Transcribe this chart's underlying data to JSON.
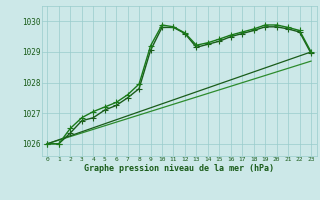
{
  "xlabel": "Graphe pression niveau de la mer (hPa)",
  "bg_color": "#cce8e8",
  "grid_color": "#99cccc",
  "dark_green": "#1a5c1a",
  "mid_green": "#2d8b2d",
  "light_green": "#3aaa3a",
  "ylim": [
    1025.6,
    1030.5
  ],
  "yticks": [
    1026,
    1027,
    1028,
    1029,
    1030
  ],
  "xlim": [
    -0.5,
    23.5
  ],
  "xticks": [
    0,
    1,
    2,
    3,
    4,
    5,
    6,
    7,
    8,
    9,
    10,
    11,
    12,
    13,
    14,
    15,
    16,
    17,
    18,
    19,
    20,
    21,
    22,
    23
  ],
  "series_main": {
    "x": [
      0,
      1,
      2,
      3,
      4,
      5,
      6,
      7,
      8,
      9,
      10,
      11,
      12,
      13,
      14,
      15,
      16,
      17,
      18,
      19,
      20,
      21,
      22,
      23
    ],
    "y": [
      1026.0,
      1026.0,
      1026.35,
      1026.75,
      1026.85,
      1027.1,
      1027.25,
      1027.5,
      1027.8,
      1029.05,
      1029.8,
      1029.8,
      1029.6,
      1029.15,
      1029.25,
      1029.35,
      1029.5,
      1029.6,
      1029.7,
      1029.82,
      1029.82,
      1029.75,
      1029.65,
      1028.95
    ],
    "color": "#1a5c1a",
    "linewidth": 1.0,
    "markersize": 2.5
  },
  "series_upper": {
    "x": [
      0,
      1,
      2,
      3,
      4,
      5,
      6,
      7,
      8,
      9,
      10,
      11,
      12,
      13,
      14,
      15,
      16,
      17,
      18,
      19,
      20,
      21,
      22,
      23
    ],
    "y": [
      1026.0,
      1026.0,
      1026.5,
      1026.85,
      1027.05,
      1027.2,
      1027.35,
      1027.6,
      1027.95,
      1029.2,
      1029.88,
      1029.82,
      1029.62,
      1029.22,
      1029.3,
      1029.42,
      1029.55,
      1029.65,
      1029.75,
      1029.88,
      1029.88,
      1029.8,
      1029.7,
      1029.0
    ],
    "color": "#1a7a1a",
    "linewidth": 1.0,
    "markersize": 2.5
  },
  "series_straight": {
    "x": [
      0,
      23
    ],
    "y": [
      1026.0,
      1028.7
    ],
    "color": "#2d8b2d",
    "linewidth": 0.9
  },
  "series_straight2": {
    "x": [
      0,
      23
    ],
    "y": [
      1026.0,
      1029.0
    ],
    "color": "#1a5c1a",
    "linewidth": 0.9
  }
}
